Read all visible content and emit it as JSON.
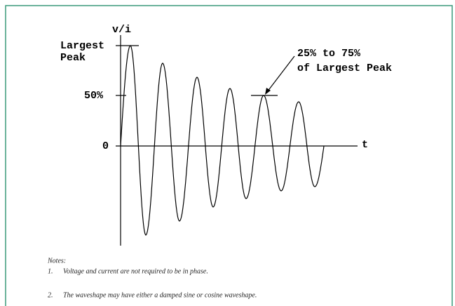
{
  "axis": {
    "y_label": "v/i",
    "x_label": "t",
    "largest_peak": [
      "Largest",
      "Peak"
    ],
    "half": "50%",
    "zero": "0"
  },
  "annotation": [
    "25% to 75%",
    "of Largest Peak"
  ],
  "notes": {
    "title": "Notes:",
    "items": [
      {
        "number": "1.",
        "text": "Voltage and current are not required to be in phase."
      },
      {
        "number": "2.",
        "text": "The waveshape may have either a damped sine or cosine waveshape."
      }
    ]
  }
}
